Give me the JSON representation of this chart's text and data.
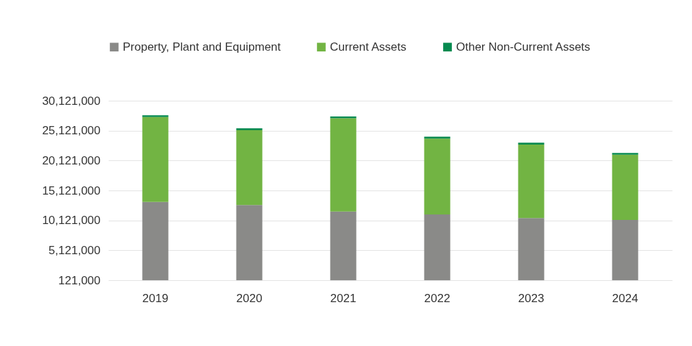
{
  "chart_data": {
    "type": "bar",
    "stacked": true,
    "categories": [
      "2019",
      "2020",
      "2021",
      "2022",
      "2023",
      "2024"
    ],
    "series": [
      {
        "name": "Property, Plant and Equipment",
        "color": "#8a8a88",
        "values": [
          13200000,
          12700000,
          11600000,
          11100000,
          10500000,
          10200000
        ]
      },
      {
        "name": "Current Assets",
        "color": "#72b443",
        "values": [
          14200000,
          12500000,
          15600000,
          12700000,
          12300000,
          10900000
        ]
      },
      {
        "name": "Other Non-Current Assets",
        "color": "#068a4f",
        "values": [
          300000,
          300000,
          300000,
          300000,
          300000,
          300000
        ]
      }
    ],
    "ylim": [
      121000,
      30121000
    ],
    "yticks": [
      {
        "value": 121000,
        "label": "121,000"
      },
      {
        "value": 5121000,
        "label": "5,121,000"
      },
      {
        "value": 10121000,
        "label": "10,121,000"
      },
      {
        "value": 15121000,
        "label": "15,121,000"
      },
      {
        "value": 20121000,
        "label": "20,121,000"
      },
      {
        "value": 25121000,
        "label": "25,121,000"
      },
      {
        "value": 30121000,
        "label": "30,121,000"
      }
    ],
    "grid": "y",
    "legend": "top"
  }
}
